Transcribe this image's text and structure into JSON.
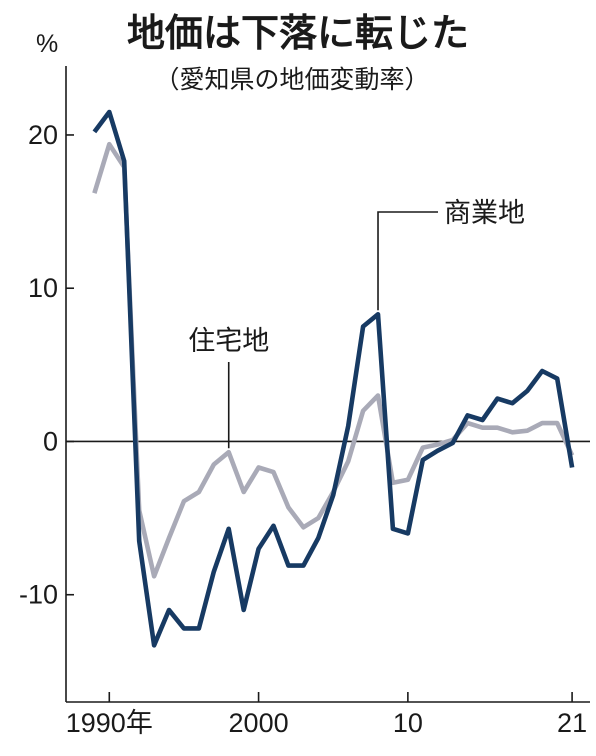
{
  "title": "地価は下落に転じた",
  "subtitle": "（愛知県の地価変動率）",
  "unit": "%",
  "chart_data": {
    "type": "line",
    "x": [
      1989,
      1990,
      1991,
      1992,
      1993,
      1994,
      1995,
      1996,
      1997,
      1998,
      1999,
      2000,
      2001,
      2002,
      2003,
      2004,
      2005,
      2006,
      2007,
      2008,
      2009,
      2010,
      2011,
      2012,
      2013,
      2014,
      2015,
      2016,
      2017,
      2018,
      2019,
      2020,
      2021
    ],
    "series": [
      {
        "name": "商業地",
        "color": "#173a63",
        "values": [
          20.2,
          21.5,
          18.3,
          -6.5,
          -13.3,
          -11.0,
          -12.2,
          -12.2,
          -8.5,
          -5.7,
          -11.0,
          -7.0,
          -5.5,
          -8.1,
          -8.1,
          -6.3,
          -3.5,
          1.0,
          7.5,
          8.3,
          -5.7,
          -6.0,
          -1.2,
          -0.6,
          -0.1,
          1.7,
          1.4,
          2.8,
          2.5,
          3.3,
          4.6,
          4.1,
          -1.7
        ]
      },
      {
        "name": "住宅地",
        "color": "#a9aab7",
        "values": [
          16.2,
          19.4,
          17.9,
          -4.5,
          -8.8,
          -6.3,
          -3.9,
          -3.3,
          -1.5,
          -0.7,
          -3.3,
          -1.7,
          -2.0,
          -4.3,
          -5.6,
          -5.0,
          -3.3,
          -1.3,
          2.0,
          3.0,
          -2.7,
          -2.5,
          -0.4,
          -0.2,
          0.1,
          1.2,
          0.9,
          0.9,
          0.6,
          0.7,
          1.2,
          1.2,
          -0.9
        ]
      }
    ],
    "y_ticks": [
      {
        "value": 20,
        "label": "20"
      },
      {
        "value": 10,
        "label": "10"
      },
      {
        "value": 0,
        "label": "0"
      },
      {
        "value": -10,
        "label": "-10"
      }
    ],
    "x_ticks": [
      {
        "value": 1990,
        "label": "1990年"
      },
      {
        "value": 2000,
        "label": "2000"
      },
      {
        "value": 2010,
        "label": "10"
      },
      {
        "value": 2021,
        "label": "21"
      }
    ],
    "xlim": [
      1987.1,
      2022.2
    ],
    "ylim": [
      -17.0,
      24.5
    ],
    "annotations": [
      {
        "text": "商業地",
        "series": "商業地",
        "x": 2008
      },
      {
        "text": "住宅地",
        "series": "住宅地",
        "x": 1998
      }
    ],
    "grid": false,
    "legend": "none"
  }
}
